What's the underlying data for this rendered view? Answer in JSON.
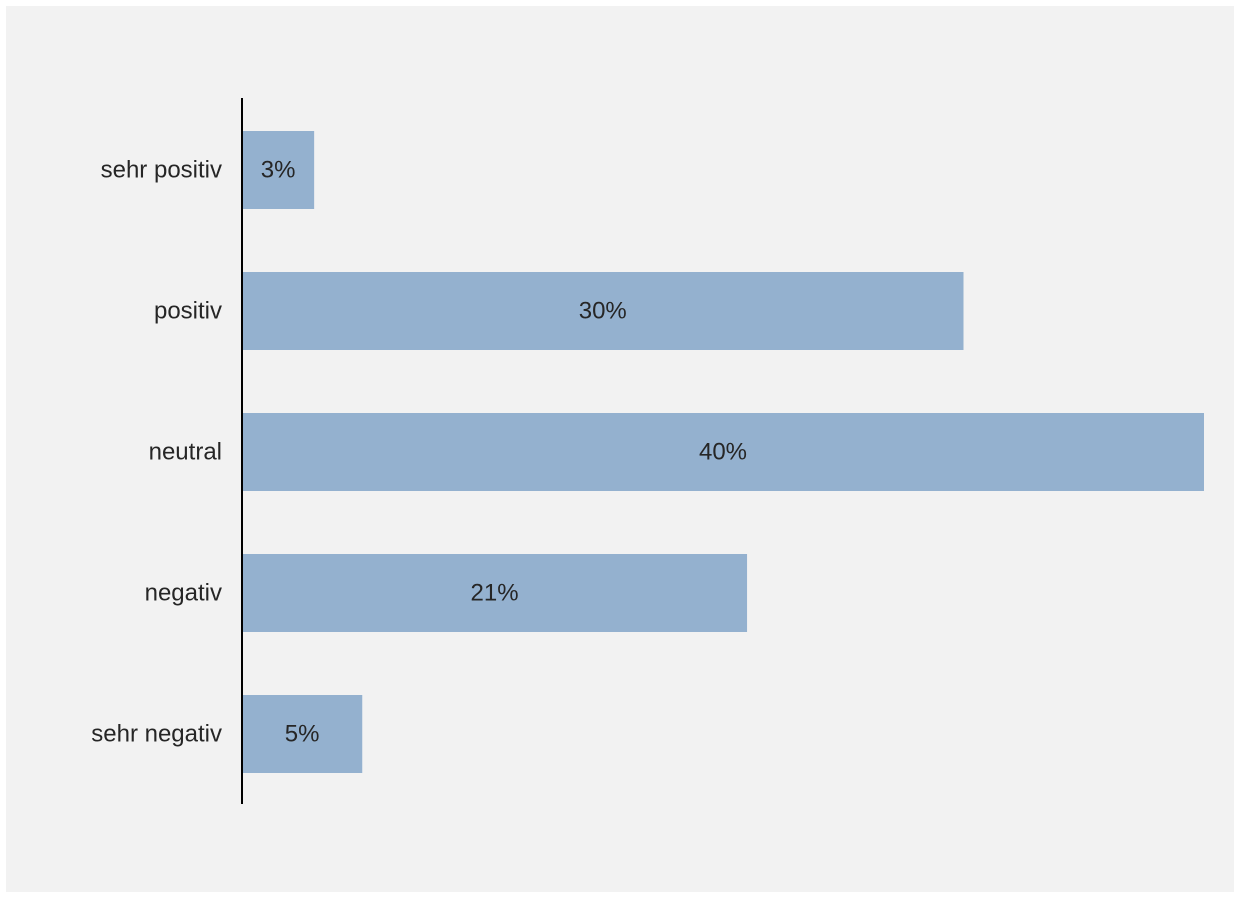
{
  "chart_data": {
    "type": "bar",
    "orientation": "horizontal",
    "categories": [
      "sehr positiv",
      "positiv",
      "neutral",
      "negativ",
      "sehr negativ"
    ],
    "values": [
      3,
      30,
      40,
      21,
      5
    ],
    "value_labels": [
      "3%",
      "30%",
      "40%",
      "21%",
      "5%"
    ],
    "unit": "%",
    "title": "",
    "xlabel": "",
    "ylabel": "",
    "xlim": [
      0,
      40
    ],
    "grid": false,
    "legend": "none",
    "bar_color": "#94b1cf",
    "background_color": "#f2f2f2",
    "axis_color": "#000000"
  }
}
